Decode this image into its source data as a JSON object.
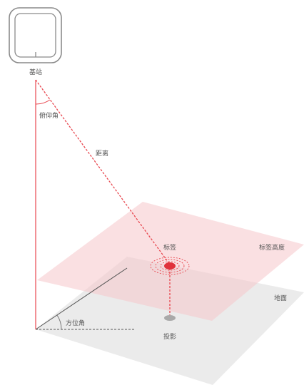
{
  "labels": {
    "base_station": "基站",
    "elevation_angle": "俯仰角",
    "distance": "距离",
    "tag": "标签",
    "tag_height": "标签高度",
    "ground": "地面",
    "azimuth_angle": "方位角",
    "projection": "投影"
  },
  "colors": {
    "accent": "#e8474f",
    "ground_plane": "#e8e8e8",
    "tag_plane": "#f9d4d7",
    "device_stroke": "#8a8a8a",
    "text": "#555555"
  },
  "icons": {
    "base_station": "base-station-device-icon",
    "tag": "tag-dot-icon",
    "projection": "projection-dot-icon"
  }
}
